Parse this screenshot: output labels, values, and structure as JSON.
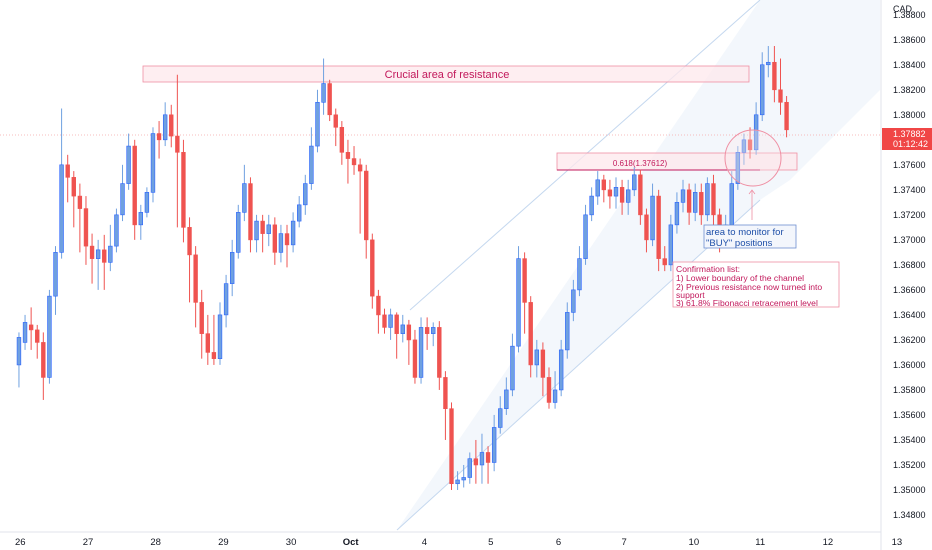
{
  "colors": {
    "up_fill": "#6fa0e0",
    "up_border": "#2962ff",
    "down_fill": "#ef5350",
    "down_border": "#ef5350",
    "annotation_pink": "#c2185b",
    "annotation_blue": "#1e4fa8",
    "price_tag": "#f04646"
  },
  "chart_data": {
    "type": "candlestick",
    "symbol_currency": "CAD",
    "y_axis_ticks": [
      "1.38800",
      "1.38600",
      "1.38400",
      "1.38200",
      "1.38000",
      "1.37800",
      "1.37600",
      "1.37400",
      "1.37200",
      "1.37000",
      "1.36800",
      "1.36600",
      "1.36400",
      "1.36200",
      "1.36000",
      "1.35800",
      "1.35600",
      "1.35400",
      "1.35200",
      "1.35000",
      "1.34800"
    ],
    "ylim": [
      1.3468,
      1.3887
    ],
    "xlim": [
      -0.3,
      12.7
    ],
    "x_axis_ticks": [
      {
        "label": "26",
        "x": 0
      },
      {
        "label": "27",
        "x": 1
      },
      {
        "label": "28",
        "x": 2
      },
      {
        "label": "29",
        "x": 3
      },
      {
        "label": "30",
        "x": 4
      },
      {
        "label": "Oct",
        "x": 4.88
      },
      {
        "label": "4",
        "x": 5.97
      },
      {
        "label": "5",
        "x": 6.95
      },
      {
        "label": "6",
        "x": 7.95
      },
      {
        "label": "7",
        "x": 8.92
      },
      {
        "label": "10",
        "x": 9.95
      },
      {
        "label": "11",
        "x": 10.93
      },
      {
        "label": "12",
        "x": 11.93
      },
      {
        "label": "13",
        "x": 12.95
      }
    ],
    "last_price": "1.37882",
    "countdown": "01:12:42",
    "candle_step": 0.09,
    "candles": [
      [
        -0.02,
        1.36,
        1.3622,
        1.3582,
        1.3626
      ],
      [
        0.07,
        1.3618,
        1.3634,
        1.3612,
        1.364
      ],
      [
        0.16,
        1.3632,
        1.3628,
        1.3612,
        1.3646
      ],
      [
        0.25,
        1.3628,
        1.3618,
        1.3605,
        1.3632
      ],
      [
        0.34,
        1.3618,
        1.359,
        1.3572,
        1.3626
      ],
      [
        0.43,
        1.359,
        1.3655,
        1.3585,
        1.366
      ],
      [
        0.52,
        1.3655,
        1.369,
        1.364,
        1.3695
      ],
      [
        0.61,
        1.369,
        1.376,
        1.3685,
        1.3805
      ],
      [
        0.7,
        1.376,
        1.375,
        1.373,
        1.3768
      ],
      [
        0.79,
        1.375,
        1.3735,
        1.371,
        1.3755
      ],
      [
        0.88,
        1.3735,
        1.3725,
        1.369,
        1.3745
      ],
      [
        0.97,
        1.3725,
        1.3695,
        1.368,
        1.3735
      ],
      [
        1.06,
        1.3695,
        1.3685,
        1.3665,
        1.3705
      ],
      [
        1.15,
        1.3685,
        1.3692,
        1.366,
        1.37
      ],
      [
        1.24,
        1.3692,
        1.3682,
        1.366,
        1.3704
      ],
      [
        1.33,
        1.3682,
        1.3695,
        1.3675,
        1.3712
      ],
      [
        1.42,
        1.3695,
        1.372,
        1.369,
        1.3725
      ],
      [
        1.51,
        1.372,
        1.3745,
        1.3715,
        1.376
      ],
      [
        1.6,
        1.3745,
        1.3775,
        1.374,
        1.3785
      ],
      [
        1.69,
        1.3775,
        1.3712,
        1.37,
        1.378
      ],
      [
        1.78,
        1.3712,
        1.3722,
        1.37,
        1.3728
      ],
      [
        1.87,
        1.3722,
        1.3738,
        1.3718,
        1.3742
      ],
      [
        1.96,
        1.3738,
        1.3785,
        1.373,
        1.379
      ],
      [
        2.05,
        1.3785,
        1.378,
        1.3765,
        1.3795
      ],
      [
        2.14,
        1.378,
        1.38,
        1.3775,
        1.381
      ],
      [
        2.23,
        1.38,
        1.3783,
        1.3774,
        1.3808
      ],
      [
        2.32,
        1.3783,
        1.377,
        1.371,
        1.3832
      ],
      [
        2.41,
        1.377,
        1.371,
        1.3698,
        1.378
      ],
      [
        2.5,
        1.371,
        1.3688,
        1.365,
        1.3718
      ],
      [
        2.59,
        1.3688,
        1.365,
        1.363,
        1.3695
      ],
      [
        2.68,
        1.365,
        1.3625,
        1.3605,
        1.366
      ],
      [
        2.77,
        1.3625,
        1.361,
        1.36,
        1.364
      ],
      [
        2.86,
        1.361,
        1.3605,
        1.36,
        1.364
      ],
      [
        2.95,
        1.3605,
        1.364,
        1.36,
        1.365
      ],
      [
        3.04,
        1.364,
        1.3665,
        1.363,
        1.3672
      ],
      [
        3.13,
        1.3665,
        1.369,
        1.3655,
        1.37
      ],
      [
        3.22,
        1.369,
        1.3722,
        1.3685,
        1.3728
      ],
      [
        3.31,
        1.3722,
        1.3745,
        1.3715,
        1.376
      ],
      [
        3.4,
        1.3745,
        1.37,
        1.369,
        1.375
      ],
      [
        3.49,
        1.37,
        1.3715,
        1.369,
        1.372
      ],
      [
        3.58,
        1.3715,
        1.3705,
        1.369,
        1.372
      ],
      [
        3.67,
        1.3705,
        1.3712,
        1.3695,
        1.372
      ],
      [
        3.76,
        1.3712,
        1.369,
        1.368,
        1.3718
      ],
      [
        3.85,
        1.369,
        1.3705,
        1.3682,
        1.3712
      ],
      [
        3.94,
        1.3705,
        1.3696,
        1.3678,
        1.3712
      ],
      [
        4.03,
        1.3696,
        1.3715,
        1.369,
        1.3722
      ],
      [
        4.12,
        1.3715,
        1.3728,
        1.371,
        1.3735
      ],
      [
        4.21,
        1.3728,
        1.3745,
        1.372,
        1.3752
      ],
      [
        4.3,
        1.3745,
        1.3775,
        1.374,
        1.379
      ],
      [
        4.39,
        1.3775,
        1.381,
        1.377,
        1.382
      ],
      [
        4.48,
        1.381,
        1.3825,
        1.38,
        1.3845
      ],
      [
        4.57,
        1.3825,
        1.38,
        1.3795,
        1.3828
      ],
      [
        4.66,
        1.38,
        1.379,
        1.3775,
        1.3805
      ],
      [
        4.75,
        1.379,
        1.377,
        1.376,
        1.3795
      ],
      [
        4.84,
        1.377,
        1.3765,
        1.3745,
        1.378
      ],
      [
        4.93,
        1.3765,
        1.376,
        1.3752,
        1.3775
      ],
      [
        5.02,
        1.376,
        1.3755,
        1.3705,
        1.3765
      ],
      [
        5.11,
        1.3755,
        1.37,
        1.3685,
        1.376
      ],
      [
        5.2,
        1.37,
        1.3655,
        1.3645,
        1.3705
      ],
      [
        5.29,
        1.3655,
        1.364,
        1.3625,
        1.366
      ],
      [
        5.38,
        1.364,
        1.363,
        1.3625,
        1.3645
      ],
      [
        5.47,
        1.363,
        1.364,
        1.362,
        1.3645
      ],
      [
        5.56,
        1.364,
        1.3625,
        1.3605,
        1.3642
      ],
      [
        5.65,
        1.3625,
        1.3632,
        1.3618,
        1.364
      ],
      [
        5.74,
        1.3632,
        1.362,
        1.36,
        1.3636
      ],
      [
        5.83,
        1.362,
        1.359,
        1.3585,
        1.3628
      ],
      [
        5.92,
        1.359,
        1.363,
        1.3585,
        1.3638
      ],
      [
        6.01,
        1.363,
        1.3625,
        1.3612,
        1.3638
      ],
      [
        6.1,
        1.3625,
        1.363,
        1.3615,
        1.3634
      ],
      [
        6.19,
        1.363,
        1.359,
        1.358,
        1.3635
      ],
      [
        6.28,
        1.359,
        1.3565,
        1.354,
        1.3595
      ],
      [
        6.37,
        1.3565,
        1.3505,
        1.35,
        1.357
      ],
      [
        6.46,
        1.3505,
        1.3508,
        1.35,
        1.3515
      ],
      [
        6.55,
        1.3508,
        1.351,
        1.3502,
        1.352
      ],
      [
        6.64,
        1.351,
        1.3525,
        1.3505,
        1.353
      ],
      [
        6.73,
        1.3525,
        1.352,
        1.3505,
        1.354
      ],
      [
        6.82,
        1.352,
        1.353,
        1.3505,
        1.3545
      ],
      [
        6.91,
        1.353,
        1.3522,
        1.3505,
        1.3535
      ],
      [
        7.0,
        1.3522,
        1.355,
        1.3515,
        1.356
      ],
      [
        7.09,
        1.355,
        1.3565,
        1.3545,
        1.3575
      ],
      [
        7.18,
        1.3565,
        1.358,
        1.356,
        1.359
      ],
      [
        7.27,
        1.358,
        1.3615,
        1.3575,
        1.3625
      ],
      [
        7.36,
        1.3615,
        1.3685,
        1.361,
        1.3695
      ],
      [
        7.45,
        1.3685,
        1.365,
        1.3625,
        1.369
      ],
      [
        7.54,
        1.365,
        1.36,
        1.359,
        1.3655
      ],
      [
        7.63,
        1.36,
        1.3612,
        1.359,
        1.362
      ],
      [
        7.72,
        1.3612,
        1.359,
        1.3575,
        1.3618
      ],
      [
        7.81,
        1.359,
        1.357,
        1.3565,
        1.3598
      ],
      [
        7.9,
        1.357,
        1.358,
        1.3565,
        1.3595
      ],
      [
        7.99,
        1.358,
        1.3612,
        1.3575,
        1.362
      ],
      [
        8.08,
        1.3612,
        1.3642,
        1.3605,
        1.365
      ],
      [
        8.17,
        1.3642,
        1.366,
        1.3635,
        1.3668
      ],
      [
        8.26,
        1.366,
        1.3685,
        1.3655,
        1.3695
      ],
      [
        8.35,
        1.3685,
        1.372,
        1.368,
        1.3728
      ],
      [
        8.44,
        1.372,
        1.3735,
        1.3715,
        1.3742
      ],
      [
        8.53,
        1.3735,
        1.3748,
        1.3728,
        1.3755
      ],
      [
        8.62,
        1.3748,
        1.374,
        1.373,
        1.3752
      ],
      [
        8.71,
        1.374,
        1.3735,
        1.3725,
        1.3748
      ],
      [
        8.8,
        1.3735,
        1.3742,
        1.3725,
        1.375
      ],
      [
        8.89,
        1.3742,
        1.373,
        1.372,
        1.3748
      ],
      [
        8.98,
        1.373,
        1.374,
        1.372,
        1.3748
      ],
      [
        9.07,
        1.374,
        1.3752,
        1.3735,
        1.3758
      ],
      [
        9.16,
        1.3752,
        1.372,
        1.3712,
        1.3756
      ],
      [
        9.25,
        1.372,
        1.37,
        1.369,
        1.3725
      ],
      [
        9.34,
        1.37,
        1.3735,
        1.3695,
        1.3745
      ],
      [
        9.43,
        1.3735,
        1.3685,
        1.3675,
        1.374
      ],
      [
        9.52,
        1.3685,
        1.368,
        1.3675,
        1.3695
      ],
      [
        9.61,
        1.368,
        1.3712,
        1.3675,
        1.372
      ],
      [
        9.7,
        1.3712,
        1.373,
        1.3705,
        1.3738
      ],
      [
        9.79,
        1.373,
        1.374,
        1.3722,
        1.3748
      ],
      [
        9.88,
        1.374,
        1.3722,
        1.3712,
        1.3745
      ],
      [
        9.97,
        1.3722,
        1.3738,
        1.3715,
        1.3745
      ],
      [
        10.06,
        1.3738,
        1.372,
        1.3712,
        1.3745
      ],
      [
        10.15,
        1.372,
        1.3745,
        1.3715,
        1.375
      ],
      [
        10.24,
        1.3745,
        1.372,
        1.3712,
        1.3752
      ],
      [
        10.33,
        1.372,
        1.3705,
        1.369,
        1.3725
      ],
      [
        10.42,
        1.3705,
        1.3712,
        1.37,
        1.372
      ],
      [
        10.51,
        1.3712,
        1.3745,
        1.3705,
        1.3755
      ],
      [
        10.6,
        1.3745,
        1.377,
        1.374,
        1.3775
      ],
      [
        10.69,
        1.377,
        1.378,
        1.376,
        1.3785
      ],
      [
        10.78,
        1.378,
        1.3772,
        1.3765,
        1.379
      ],
      [
        10.87,
        1.3772,
        1.38,
        1.3768,
        1.381
      ],
      [
        10.96,
        1.38,
        1.384,
        1.3795,
        1.385
      ],
      [
        11.05,
        1.384,
        1.3842,
        1.383,
        1.3855
      ],
      [
        11.14,
        1.3842,
        1.382,
        1.381,
        1.3855
      ],
      [
        11.23,
        1.382,
        1.381,
        1.38,
        1.3845
      ],
      [
        11.32,
        1.381,
        1.3788,
        1.3782,
        1.3815
      ]
    ]
  },
  "annotations": {
    "resistance_label": "Crucial area of resistance",
    "fib_label": "0.618(1.37612)",
    "monitor_line1": "area to monitor for",
    "monitor_line2": "\"BUY\" positions",
    "confirm_title": "Confirmation list:",
    "confirm_1": "1) Lower boundary of the channel",
    "confirm_2a": "2) Previous resistance now turned into",
    "confirm_2b": "support",
    "confirm_3": "3) 61.8% Fibonacci retracement level"
  }
}
